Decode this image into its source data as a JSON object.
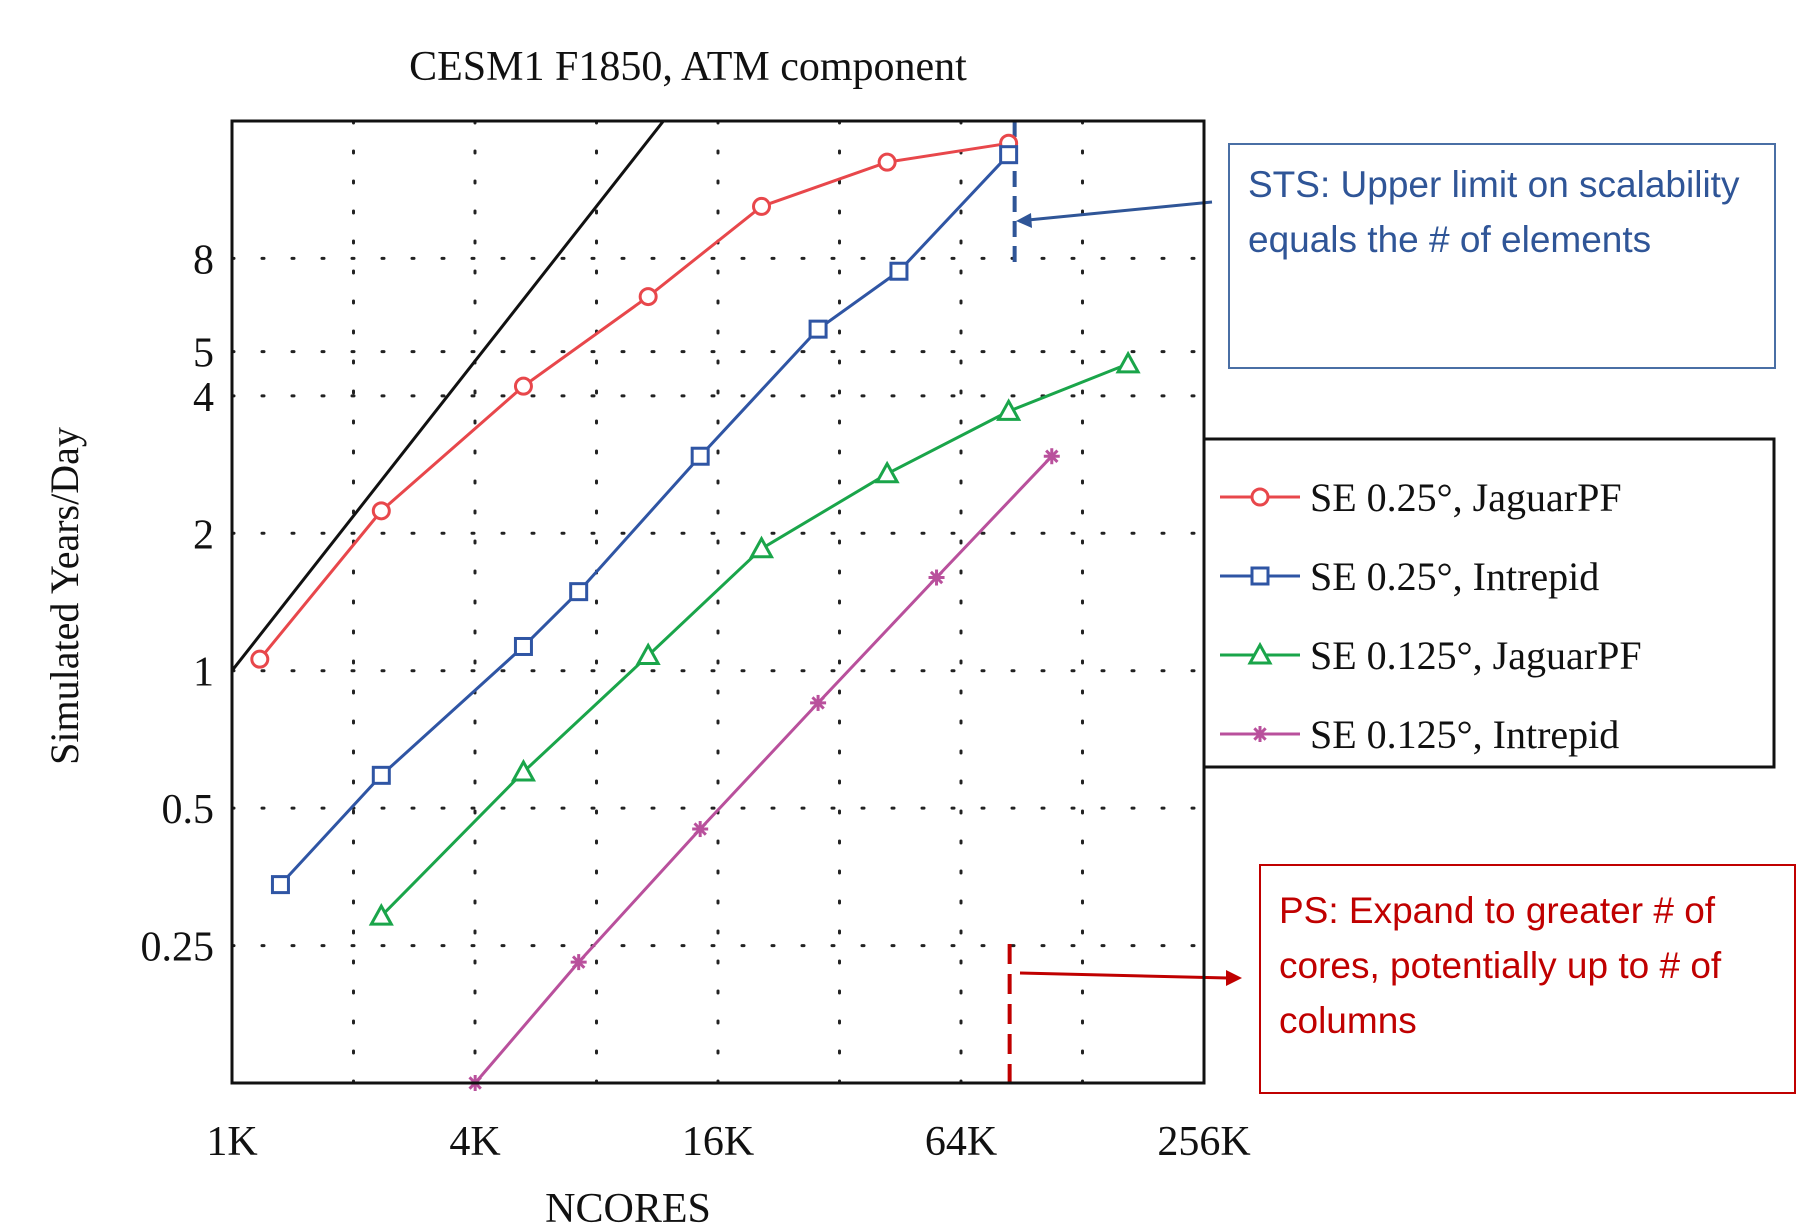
{
  "chart_data": {
    "type": "line",
    "title": "CESM1 F1850, ATM component",
    "xlabel": "NCORES",
    "ylabel": "Simulated Years/Day",
    "x_scale": "log2",
    "y_scale": "log",
    "xlim": [
      1024,
      262144
    ],
    "ylim": [
      0.125,
      16
    ],
    "x_ticks": [
      1024,
      4096,
      16384,
      65536,
      262144
    ],
    "x_tick_labels": [
      "1K",
      "4K",
      "16K",
      "64K",
      "256K"
    ],
    "y_ticks": [
      0.25,
      0.5,
      1,
      2,
      4,
      5,
      8
    ],
    "y_tick_labels": [
      "0.25",
      "0.5",
      "1",
      "2",
      "4",
      "5",
      "8"
    ],
    "grid": true,
    "legend_position": "right",
    "ideal_line": {
      "x": [
        1024,
        12000
      ],
      "y": [
        1.0,
        16
      ]
    },
    "series": [
      {
        "name": "SE 0.25°,  JaguarPF",
        "marker": "circle",
        "color": "#e8474b",
        "x": [
          1200,
          2400,
          5400,
          11000,
          21000,
          43000,
          86000
        ],
        "y": [
          1.06,
          2.24,
          4.2,
          6.6,
          10.4,
          13.0,
          14.3
        ]
      },
      {
        "name": "SE 0.25°, Intrepid",
        "marker": "square",
        "color": "#2f55a4",
        "x": [
          1350,
          2400,
          5400,
          7400,
          14800,
          29000,
          46000,
          86000
        ],
        "y": [
          0.34,
          0.59,
          1.13,
          1.49,
          2.95,
          5.6,
          7.5,
          13.5
        ]
      },
      {
        "name": "SE 0.125°, JaguarPF",
        "marker": "triangle",
        "color": "#1aa54a",
        "x": [
          2400,
          5400,
          11000,
          21000,
          43000,
          86000,
          170000
        ],
        "y": [
          0.29,
          0.6,
          1.08,
          1.85,
          2.7,
          3.7,
          4.7
        ]
      },
      {
        "name": "SE 0.125°, Intrepid",
        "marker": "star",
        "color": "#b9509c",
        "x": [
          4100,
          7400,
          14800,
          29000,
          57000,
          110000
        ],
        "y": [
          0.125,
          0.23,
          0.45,
          0.85,
          1.6,
          2.95
        ]
      }
    ],
    "annotations": [
      {
        "text": "STS: Upper limit on scalability equals the # of elements",
        "color": "#2f5597",
        "x": 86000,
        "style": "dashed-line-top"
      },
      {
        "text": "PS: Expand to greater # of cores, potentially up to # of columns",
        "color": "#c00000",
        "x": 86000,
        "style": "dashed-line-bottom"
      }
    ]
  }
}
